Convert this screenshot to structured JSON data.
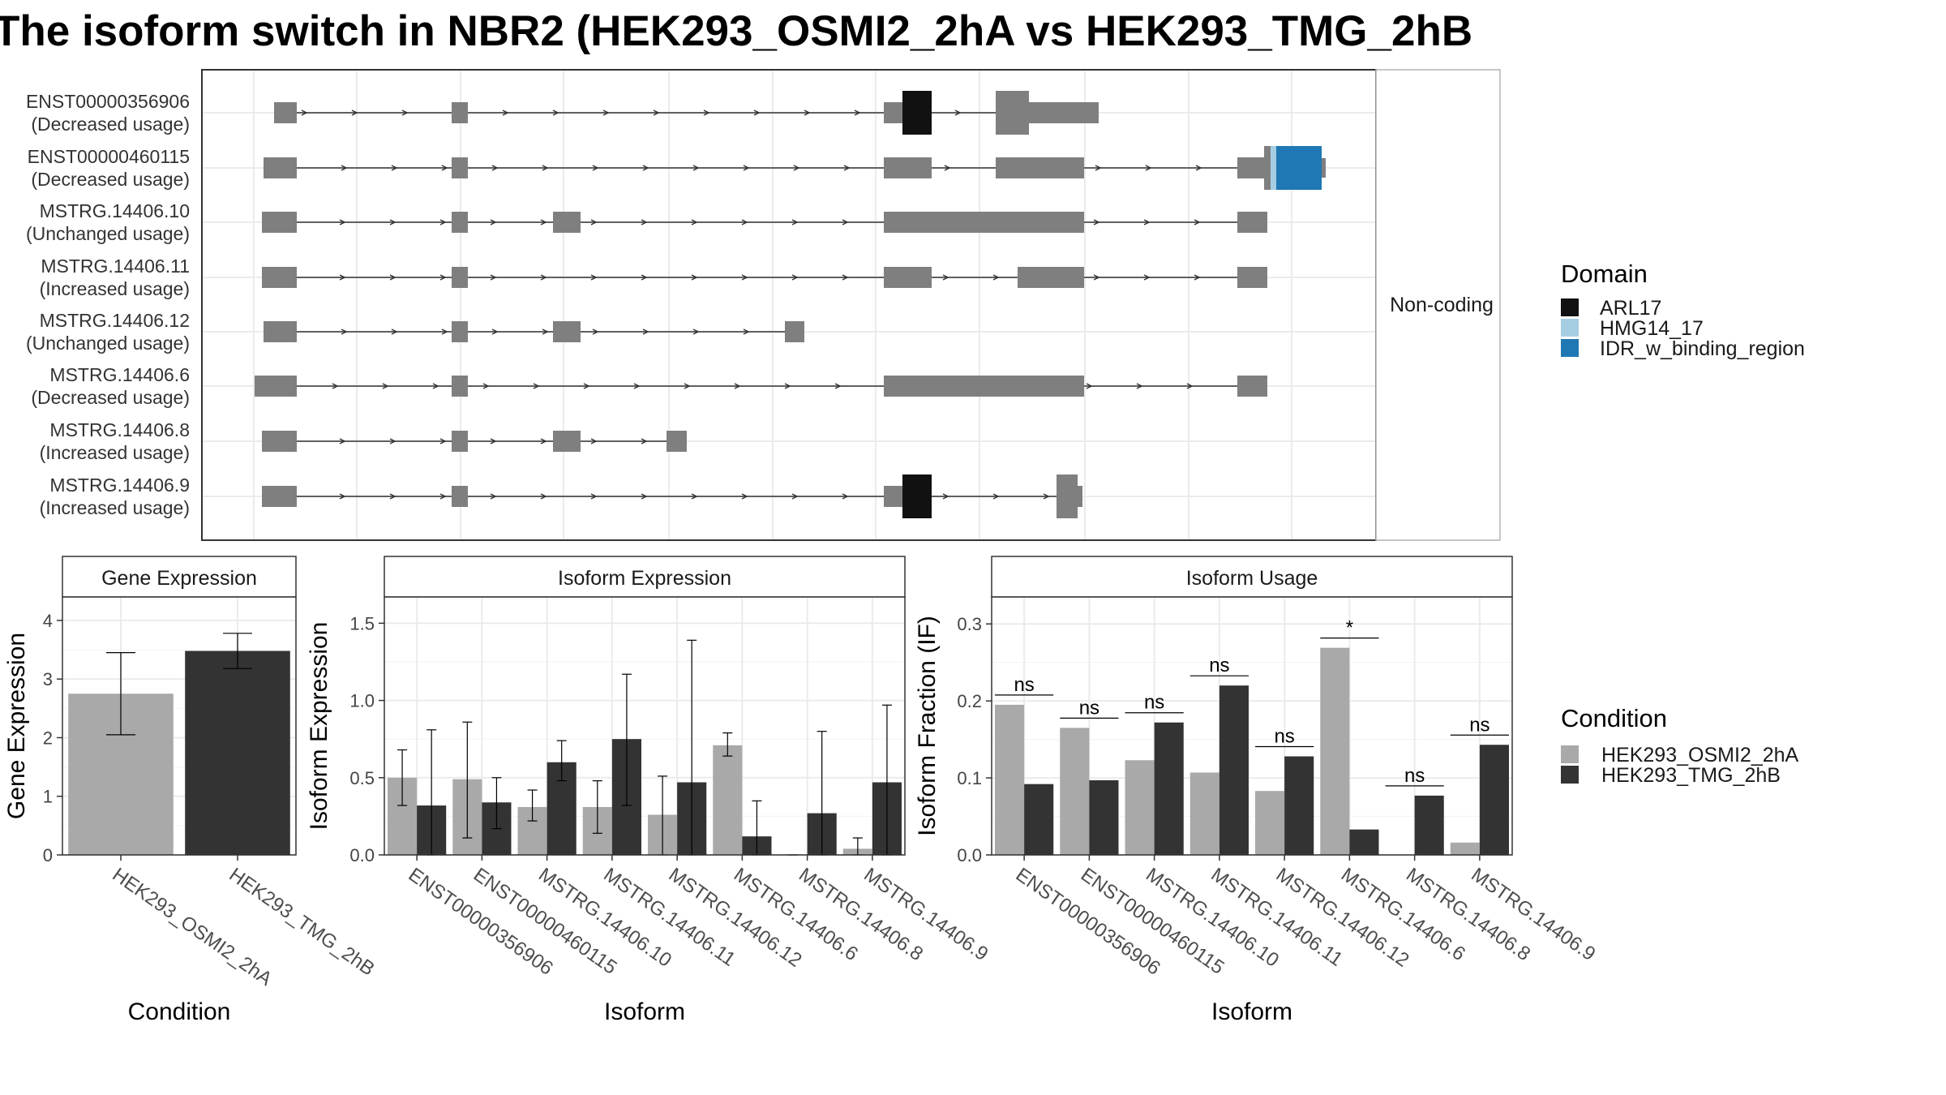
{
  "title": "The isoform switch in NBR2 (HEK293_OSMI2_2hA vs HEK293_TMG_2hB",
  "colors": {
    "exon": "#7f7f7f",
    "ARL17": "#111111",
    "HMG14_17": "#a6cee3",
    "IDR_w_binding_region": "#1f78b4",
    "condA": "#a9a9a9",
    "condB": "#333333",
    "grid": "#ebebeb",
    "panel_border": "#333333",
    "strip_fill": "#ffffff"
  },
  "structure": {
    "coding_strip_label": "Non-coding",
    "isoforms": [
      {
        "id": "ENST00000356906",
        "usage": "(Decreased usage)"
      },
      {
        "id": "ENST00000460115",
        "usage": "(Decreased usage)"
      },
      {
        "id": "MSTRG.14406.10",
        "usage": "(Unchanged usage)"
      },
      {
        "id": "MSTRG.14406.11",
        "usage": "(Increased usage)"
      },
      {
        "id": "MSTRG.14406.12",
        "usage": "(Unchanged usage)"
      },
      {
        "id": "MSTRG.14406.6",
        "usage": "(Decreased usage)"
      },
      {
        "id": "MSTRG.14406.8",
        "usage": "(Increased usage)"
      },
      {
        "id": "MSTRG.14406.9",
        "usage": "(Increased usage)"
      }
    ]
  },
  "domain_legend": {
    "title": "Domain",
    "items": [
      {
        "label": "ARL17",
        "color": "#111111"
      },
      {
        "label": "HMG14_17",
        "color": "#a6cee3"
      },
      {
        "label": "IDR_w_binding_region",
        "color": "#1f78b4"
      }
    ]
  },
  "condition_legend": {
    "title": "Condition",
    "items": [
      {
        "label": "HEK293_OSMI2_2hA",
        "color": "#a9a9a9"
      },
      {
        "label": "HEK293_TMG_2hB",
        "color": "#333333"
      }
    ]
  },
  "chart_data": [
    {
      "type": "bar",
      "title": "Gene Expression",
      "xlabel": "Condition",
      "ylabel": "Gene Expression",
      "ylim": [
        0,
        4.4
      ],
      "yticks": [
        0,
        1,
        2,
        3,
        4
      ],
      "categories": [
        "HEK293_OSMI2_2hA",
        "HEK293_TMG_2hB"
      ],
      "values": [
        2.75,
        3.48
      ],
      "err_low": [
        2.05,
        3.18
      ],
      "err_high": [
        3.45,
        3.78
      ],
      "colors": [
        "#a9a9a9",
        "#333333"
      ]
    },
    {
      "type": "bar",
      "title": "Isoform Expression",
      "xlabel": "Isoform",
      "ylabel": "Isoform Expression",
      "ylim": [
        0,
        1.67
      ],
      "yticks": [
        0.0,
        0.5,
        1.0,
        1.5
      ],
      "ytick_labels": [
        "0.0",
        "0.5",
        "1.0",
        "1.5"
      ],
      "categories": [
        "ENST00000356906",
        "ENST00000460115",
        "MSTRG.14406.10",
        "MSTRG.14406.11",
        "MSTRG.14406.12",
        "MSTRG.14406.6",
        "MSTRG.14406.8",
        "MSTRG.14406.9"
      ],
      "series": [
        {
          "name": "HEK293_OSMI2_2hA",
          "values": [
            0.5,
            0.49,
            0.31,
            0.31,
            0.26,
            0.71,
            0.0,
            0.04
          ],
          "err_low": [
            0.32,
            0.11,
            0.22,
            0.14,
            0.0,
            0.64,
            0.0,
            0.0
          ],
          "err_high": [
            0.68,
            0.86,
            0.42,
            0.48,
            0.51,
            0.79,
            0.0,
            0.11
          ]
        },
        {
          "name": "HEK293_TMG_2hB",
          "values": [
            0.32,
            0.34,
            0.6,
            0.75,
            0.47,
            0.12,
            0.27,
            0.47
          ],
          "err_low": [
            0.0,
            0.17,
            0.48,
            0.32,
            0.0,
            0.0,
            0.0,
            0.0
          ],
          "err_high": [
            0.81,
            0.5,
            0.74,
            1.17,
            1.39,
            0.35,
            0.8,
            0.97
          ]
        }
      ]
    },
    {
      "type": "bar",
      "title": "Isoform Usage",
      "xlabel": "Isoform",
      "ylabel": "Isoform Fraction (IF)",
      "ylim": [
        0,
        0.335
      ],
      "yticks": [
        0.0,
        0.1,
        0.2,
        0.3
      ],
      "ytick_labels": [
        "0.0",
        "0.1",
        "0.2",
        "0.3"
      ],
      "categories": [
        "ENST00000356906",
        "ENST00000460115",
        "MSTRG.14406.10",
        "MSTRG.14406.11",
        "MSTRG.14406.12",
        "MSTRG.14406.6",
        "MSTRG.14406.8",
        "MSTRG.14406.9"
      ],
      "series": [
        {
          "name": "HEK293_OSMI2_2hA",
          "values": [
            0.195,
            0.165,
            0.123,
            0.107,
            0.083,
            0.269,
            0.0,
            0.016
          ]
        },
        {
          "name": "HEK293_TMG_2hB",
          "values": [
            0.092,
            0.097,
            0.172,
            0.22,
            0.128,
            0.033,
            0.077,
            0.143
          ]
        }
      ],
      "annotations": [
        "ns",
        "ns",
        "ns",
        "ns",
        "ns",
        "*",
        "ns",
        "ns"
      ]
    }
  ]
}
